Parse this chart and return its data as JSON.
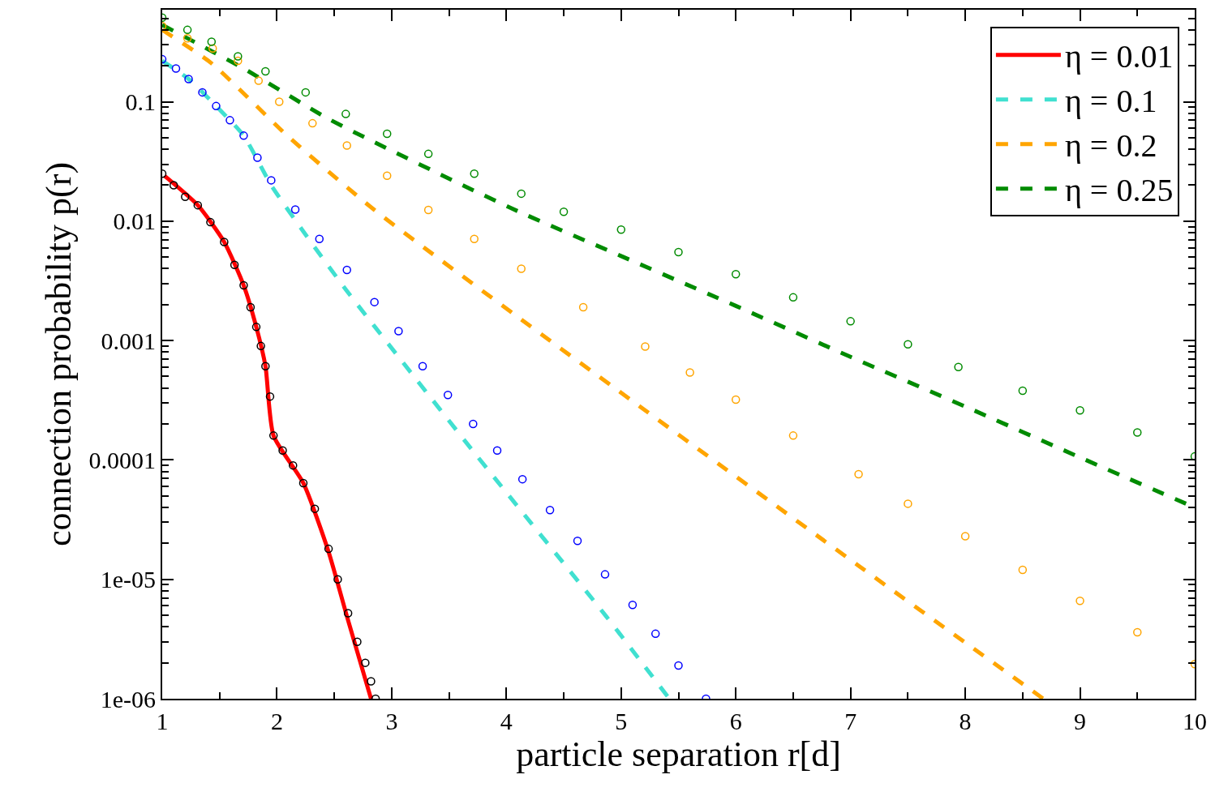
{
  "chart_data": {
    "type": "line",
    "xlabel": "particle separation r[d]",
    "ylabel": "connection probability p(r)",
    "log": "y",
    "legend": "top right",
    "xlim": [
      1,
      10
    ],
    "xticks": [
      1,
      2,
      3,
      4,
      5,
      6,
      7,
      8,
      9,
      10
    ],
    "ylim": [
      1e-06,
      0.59
    ],
    "yticks": [
      {
        "value": 1e-06,
        "label": "1e-06"
      },
      {
        "value": 1e-05,
        "label": "1e-05"
      },
      {
        "value": 0.0001,
        "label": "0.0001"
      },
      {
        "value": 0.001,
        "label": "0.001"
      },
      {
        "value": 0.01,
        "label": "0.01"
      },
      {
        "value": 0.1,
        "label": "0.1"
      }
    ],
    "series": [
      {
        "type": "scatter",
        "marker": "circle",
        "color": "#000000",
        "x": [
          1.0,
          1.1,
          1.2,
          1.31,
          1.42,
          1.54,
          1.63,
          1.71,
          1.77,
          1.82,
          1.86,
          1.9,
          1.94,
          1.97,
          2.05,
          2.14,
          2.23,
          2.33,
          2.45,
          2.53,
          2.62,
          2.7,
          2.77,
          2.82,
          2.86
        ],
        "values": [
          0.025,
          0.02,
          0.016,
          0.0136,
          0.0098,
          0.0067,
          0.0043,
          0.0029,
          0.0019,
          0.0013,
          0.0009,
          0.00061,
          0.00034,
          0.00016,
          0.00012,
          9e-05,
          6.4e-05,
          3.9e-05,
          1.8e-05,
          1e-05,
          5.2e-06,
          3e-06,
          2e-06,
          1.4e-06,
          1e-06
        ]
      },
      {
        "type": "scatter",
        "marker": "circle",
        "color": "#0000ff",
        "x": [
          1.0,
          1.12,
          1.23,
          1.35,
          1.47,
          1.59,
          1.71,
          1.83,
          1.95,
          2.16,
          2.37,
          2.61,
          2.85,
          3.06,
          3.27,
          3.49,
          3.71,
          3.92,
          4.14,
          4.38,
          4.62,
          4.86,
          5.1,
          5.3,
          5.5,
          5.74
        ],
        "values": [
          0.227,
          0.19,
          0.155,
          0.12,
          0.092,
          0.07,
          0.052,
          0.034,
          0.022,
          0.0125,
          0.0071,
          0.0039,
          0.0021,
          0.0012,
          0.00061,
          0.00035,
          0.0002,
          0.00012,
          6.9e-05,
          3.8e-05,
          2.1e-05,
          1.1e-05,
          6.1e-06,
          3.5e-06,
          1.9e-06,
          1e-06
        ]
      },
      {
        "type": "scatter",
        "marker": "circle",
        "color": "#ffa500",
        "x": [
          1.0,
          1.22,
          1.44,
          1.66,
          1.84,
          2.02,
          2.31,
          2.61,
          2.96,
          3.32,
          3.72,
          4.13,
          4.67,
          5.21,
          5.6,
          6.0,
          6.5,
          7.07,
          7.5,
          8.0,
          8.5,
          9.0,
          9.5,
          10.0
        ],
        "values": [
          0.43,
          0.34,
          0.28,
          0.22,
          0.15,
          0.1,
          0.066,
          0.043,
          0.024,
          0.0124,
          0.0071,
          0.004,
          0.0019,
          0.00089,
          0.00054,
          0.00032,
          0.00016,
          7.6e-05,
          4.3e-05,
          2.3e-05,
          1.2e-05,
          6.6e-06,
          3.6e-06,
          1.95e-06
        ]
      },
      {
        "type": "scatter",
        "marker": "circle",
        "color": "#008b00",
        "x": [
          1.0,
          1.22,
          1.43,
          1.66,
          1.9,
          2.25,
          2.6,
          2.96,
          3.32,
          3.72,
          4.13,
          4.5,
          5.0,
          5.5,
          6.0,
          6.5,
          7.0,
          7.5,
          7.94,
          8.5,
          9.0,
          9.5,
          10.0
        ],
        "values": [
          0.507,
          0.4,
          0.318,
          0.24,
          0.18,
          0.12,
          0.079,
          0.054,
          0.0366,
          0.025,
          0.017,
          0.012,
          0.0085,
          0.0055,
          0.0036,
          0.0023,
          0.00145,
          0.00093,
          0.0006,
          0.00038,
          0.00026,
          0.00017,
          0.000107
        ]
      },
      {
        "name": "η = 0.01",
        "line_style": "solid",
        "color": "#ff0000",
        "x": [
          1.02,
          1.31,
          1.54,
          1.71,
          1.82,
          1.9,
          1.97,
          2.23,
          2.45,
          2.61,
          2.82
        ],
        "values": [
          0.024,
          0.0136,
          0.0067,
          0.0029,
          0.0013,
          0.00061,
          0.00016,
          6.4e-05,
          1.7e-05,
          4.9e-06,
          1e-06
        ]
      },
      {
        "name": "η = 0.1",
        "line_style": "dashed",
        "color": "#40e0d0",
        "x": [
          1.0,
          1.23,
          1.47,
          1.71,
          1.95,
          2.25,
          2.61,
          3.08,
          3.73,
          4.87,
          5.42
        ],
        "values": [
          0.22,
          0.155,
          0.092,
          0.052,
          0.02,
          0.0077,
          0.0026,
          0.00069,
          0.000112,
          4.9e-06,
          1e-06
        ]
      },
      {
        "name": "η = 0.2",
        "line_style": "dashed",
        "color": "#ffa500",
        "x": [
          1.0,
          1.43,
          2.09,
          2.85,
          4.13,
          5.21,
          7.07,
          8.68
        ],
        "values": [
          0.4,
          0.21,
          0.052,
          0.0124,
          0.0015,
          0.00026,
          1.3e-05,
          1e-06
        ]
      },
      {
        "name": "η = 0.25",
        "line_style": "dashed",
        "color": "#008b00",
        "x": [
          1.0,
          1.71,
          2.46,
          4.03,
          5.0,
          6.0,
          7.0,
          8.0,
          9.0,
          10.0
        ],
        "values": [
          0.44,
          0.19,
          0.071,
          0.013,
          0.0051,
          0.00195,
          0.00073,
          0.00028,
          0.000105,
          4e-05
        ]
      }
    ]
  }
}
